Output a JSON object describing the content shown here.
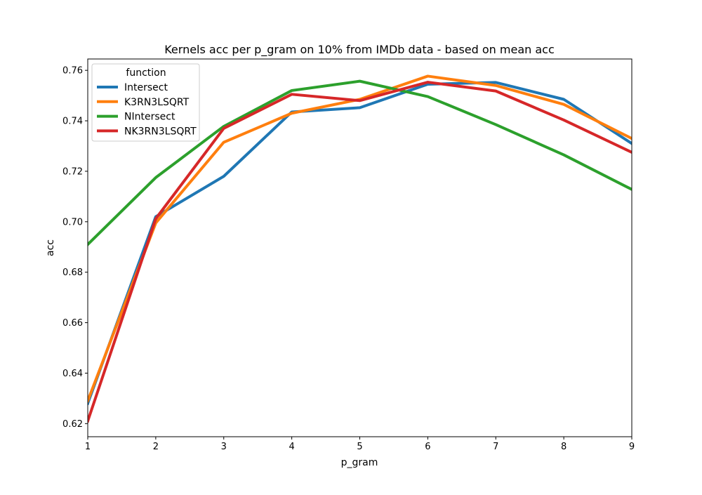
{
  "chart_data": {
    "type": "line",
    "title": "Kernels acc per p_gram on 10% from IMDb data - based on mean acc",
    "xlabel": "p_gram",
    "ylabel": "acc",
    "x": [
      1,
      2,
      3,
      4,
      5,
      6,
      7,
      8,
      9
    ],
    "xlim": [
      1,
      9
    ],
    "ylim": [
      0.6148,
      0.7645
    ],
    "xticks": [
      1,
      2,
      3,
      4,
      5,
      6,
      7,
      8,
      9
    ],
    "xtick_labels": [
      "1",
      "2",
      "3",
      "4",
      "5",
      "6",
      "7",
      "8",
      "9"
    ],
    "yticks": [
      0.62,
      0.64,
      0.66,
      0.68,
      0.7,
      0.72,
      0.74,
      0.76
    ],
    "ytick_labels": [
      "0.62",
      "0.64",
      "0.66",
      "0.68",
      "0.70",
      "0.72",
      "0.74",
      "0.76"
    ],
    "grid": false,
    "legend": {
      "title": "function",
      "position": "top-left"
    },
    "series": [
      {
        "name": "Intersect",
        "color": "#1f77b4",
        "values": [
          0.628,
          0.702,
          0.718,
          0.7435,
          0.7452,
          0.7545,
          0.7552,
          0.7485,
          0.731
        ]
      },
      {
        "name": "K3RN3LSQRT",
        "color": "#ff7f0e",
        "values": [
          0.629,
          0.6995,
          0.7315,
          0.743,
          0.7485,
          0.7577,
          0.754,
          0.7465,
          0.733
        ]
      },
      {
        "name": "NIntersect",
        "color": "#2ca02c",
        "values": [
          0.691,
          0.7175,
          0.7378,
          0.752,
          0.7557,
          0.7496,
          0.7385,
          0.7265,
          0.7128
        ]
      },
      {
        "name": "NK3RN3LSQRT",
        "color": "#d62728",
        "values": [
          0.621,
          0.7012,
          0.737,
          0.7505,
          0.748,
          0.7553,
          0.7518,
          0.7403,
          0.7275
        ]
      }
    ]
  }
}
